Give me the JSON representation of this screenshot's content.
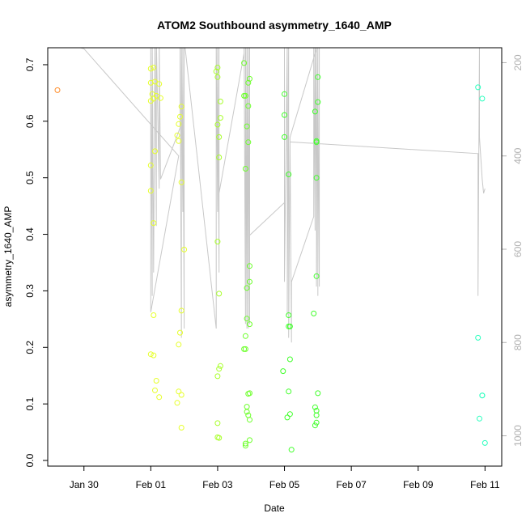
{
  "chart_data": {
    "type": "scatter",
    "title": "ATOM2 Southbound asymmetry_1640_AMP",
    "xlabel": "Date",
    "ylabel": "asymmetry_1640_AMP",
    "x_axis": {
      "type": "date",
      "range": [
        "2024-01-28T22:00",
        "2024-02-11T12:00"
      ],
      "ticks": [
        {
          "value": "2024-01-30",
          "label": "Jan 30"
        },
        {
          "value": "2024-02-01",
          "label": "Feb 01"
        },
        {
          "value": "2024-02-03",
          "label": "Feb 03"
        },
        {
          "value": "2024-02-05",
          "label": "Feb 05"
        },
        {
          "value": "2024-02-07",
          "label": "Feb 07"
        },
        {
          "value": "2024-02-09",
          "label": "Feb 09"
        },
        {
          "value": "2024-02-11",
          "label": "Feb 11"
        }
      ]
    },
    "y_axis": {
      "range": [
        -0.01,
        0.73
      ],
      "ticks": [
        0.0,
        0.1,
        0.2,
        0.3,
        0.4,
        0.5,
        0.6,
        0.7
      ],
      "tick_labels": [
        "0.0",
        "0.1",
        "0.2",
        "0.3",
        "0.4",
        "0.5",
        "0.6",
        "0.7"
      ]
    },
    "y2_axis": {
      "reversed": true,
      "range": [
        168,
        1065
      ],
      "ticks": [
        200,
        400,
        600,
        800,
        1000
      ],
      "tick_labels": [
        "200",
        "400",
        "600",
        "800",
        "1000"
      ],
      "color": "#b0b0b0"
    },
    "grid": false,
    "legend": "none",
    "point_style": "open circle",
    "series": [
      {
        "color": "#ff8c28",
        "points": [
          [
            "2024-01-29T05:00",
            0.655
          ]
        ]
      },
      {
        "color": "#e6ff2a",
        "points": [
          [
            "2024-02-01T00:00",
            0.693
          ],
          [
            "2024-02-01T02:00",
            0.695
          ],
          [
            "2024-02-01T00:00",
            0.668
          ],
          [
            "2024-02-01T03:00",
            0.67
          ],
          [
            "2024-02-01T06:00",
            0.666
          ],
          [
            "2024-02-01T01:00",
            0.648
          ],
          [
            "2024-02-01T04:00",
            0.645
          ],
          [
            "2024-02-01T07:00",
            0.641
          ],
          [
            "2024-02-01T02:00",
            0.64
          ],
          [
            "2024-02-01T00:00",
            0.636
          ],
          [
            "2024-02-01T03:00",
            0.547
          ],
          [
            "2024-02-01T00:00",
            0.522
          ],
          [
            "2024-02-01T00:00",
            0.477
          ],
          [
            "2024-02-01T02:00",
            0.42
          ],
          [
            "2024-02-01T02:00",
            0.257
          ],
          [
            "2024-02-01T00:00",
            0.188
          ],
          [
            "2024-02-01T02:00",
            0.186
          ],
          [
            "2024-02-01T04:00",
            0.141
          ],
          [
            "2024-02-01T03:00",
            0.124
          ],
          [
            "2024-02-01T06:00",
            0.112
          ],
          [
            "2024-02-01T22:00",
            0.626
          ],
          [
            "2024-02-01T21:00",
            0.608
          ],
          [
            "2024-02-01T20:00",
            0.595
          ],
          [
            "2024-02-01T19:00",
            0.575
          ],
          [
            "2024-02-01T20:00",
            0.565
          ],
          [
            "2024-02-01T22:00",
            0.492
          ],
          [
            "2024-02-02T00:00",
            0.373
          ],
          [
            "2024-02-01T22:00",
            0.265
          ],
          [
            "2024-02-01T21:00",
            0.226
          ],
          [
            "2024-02-01T20:00",
            0.205
          ],
          [
            "2024-02-01T20:00",
            0.122
          ],
          [
            "2024-02-01T22:00",
            0.116
          ],
          [
            "2024-02-01T19:00",
            0.102
          ],
          [
            "2024-02-01T22:00",
            0.058
          ]
        ]
      },
      {
        "color": "#a8ff2a",
        "points": [
          [
            "2024-02-03T00:00",
            0.695
          ],
          [
            "2024-02-02T23:00",
            0.688
          ],
          [
            "2024-02-03T00:00",
            0.678
          ],
          [
            "2024-02-03T02:00",
            0.635
          ],
          [
            "2024-02-03T02:00",
            0.606
          ],
          [
            "2024-02-03T00:00",
            0.594
          ],
          [
            "2024-02-03T01:00",
            0.572
          ],
          [
            "2024-02-03T01:00",
            0.536
          ],
          [
            "2024-02-03T00:00",
            0.387
          ],
          [
            "2024-02-03T01:00",
            0.295
          ],
          [
            "2024-02-03T02:00",
            0.167
          ],
          [
            "2024-02-03T01:00",
            0.162
          ],
          [
            "2024-02-03T00:00",
            0.149
          ],
          [
            "2024-02-03T00:00",
            0.066
          ],
          [
            "2024-02-03T00:00",
            0.041
          ],
          [
            "2024-02-03T01:00",
            0.04
          ]
        ]
      },
      {
        "color": "#6cff2a",
        "points": [
          [
            "2024-02-03T19:00",
            0.703
          ],
          [
            "2024-02-03T23:00",
            0.675
          ],
          [
            "2024-02-03T22:00",
            0.668
          ],
          [
            "2024-02-03T19:00",
            0.645
          ],
          [
            "2024-02-03T20:00",
            0.645
          ],
          [
            "2024-02-03T22:00",
            0.627
          ],
          [
            "2024-02-03T21:00",
            0.591
          ],
          [
            "2024-02-03T22:00",
            0.563
          ],
          [
            "2024-02-03T20:00",
            0.516
          ],
          [
            "2024-02-03T23:00",
            0.344
          ],
          [
            "2024-02-03T23:00",
            0.316
          ],
          [
            "2024-02-03T21:00",
            0.305
          ],
          [
            "2024-02-03T21:00",
            0.251
          ],
          [
            "2024-02-03T23:00",
            0.241
          ],
          [
            "2024-02-03T20:00",
            0.22
          ],
          [
            "2024-02-03T19:00",
            0.197
          ],
          [
            "2024-02-03T20:00",
            0.197
          ],
          [
            "2024-02-03T23:00",
            0.119
          ],
          [
            "2024-02-03T22:00",
            0.118
          ],
          [
            "2024-02-03T21:00",
            0.095
          ],
          [
            "2024-02-03T21:00",
            0.086
          ],
          [
            "2024-02-03T22:00",
            0.08
          ],
          [
            "2024-02-03T23:00",
            0.072
          ],
          [
            "2024-02-03T23:00",
            0.036
          ],
          [
            "2024-02-03T20:00",
            0.03
          ],
          [
            "2024-02-03T20:00",
            0.026
          ]
        ]
      },
      {
        "color": "#40ff2a",
        "points": [
          [
            "2024-02-05T00:00",
            0.648
          ],
          [
            "2024-02-05T00:00",
            0.611
          ],
          [
            "2024-02-05T00:00",
            0.572
          ],
          [
            "2024-02-05T03:00",
            0.506
          ],
          [
            "2024-02-05T03:00",
            0.257
          ],
          [
            "2024-02-05T03:00",
            0.237
          ],
          [
            "2024-02-05T04:00",
            0.237
          ],
          [
            "2024-02-05T04:00",
            0.179
          ],
          [
            "2024-02-04T23:00",
            0.158
          ],
          [
            "2024-02-05T03:00",
            0.122
          ],
          [
            "2024-02-05T04:00",
            0.082
          ],
          [
            "2024-02-05T02:00",
            0.076
          ],
          [
            "2024-02-05T05:00",
            0.019
          ],
          [
            "2024-02-06T00:00",
            0.678
          ],
          [
            "2024-02-06T00:00",
            0.634
          ],
          [
            "2024-02-05T22:00",
            0.617
          ],
          [
            "2024-02-05T23:00",
            0.565
          ],
          [
            "2024-02-05T23:00",
            0.563
          ],
          [
            "2024-02-05T23:00",
            0.5
          ],
          [
            "2024-02-05T23:00",
            0.326
          ],
          [
            "2024-02-05T21:00",
            0.26
          ],
          [
            "2024-02-06T00:00",
            0.119
          ],
          [
            "2024-02-05T22:00",
            0.094
          ],
          [
            "2024-02-05T23:00",
            0.088
          ],
          [
            "2024-02-05T23:00",
            0.08
          ],
          [
            "2024-02-05T23:00",
            0.067
          ],
          [
            "2024-02-05T22:00",
            0.062
          ]
        ]
      },
      {
        "color": "#2affbe",
        "points": [
          [
            "2024-02-10T19:00",
            0.66
          ],
          [
            "2024-02-10T22:00",
            0.64
          ],
          [
            "2024-02-10T19:00",
            0.217
          ],
          [
            "2024-02-10T22:00",
            0.115
          ],
          [
            "2024-02-10T22:00",
            0.115
          ],
          [
            "2024-02-10T20:00",
            0.074
          ],
          [
            "2024-02-11T00:00",
            0.031
          ]
        ]
      }
    ],
    "overlay_line": {
      "axis": "right",
      "color": "#c8c8c8",
      "points": [
        [
          "2024-01-28T22:00",
          150
        ],
        [
          "2024-01-30T00:00",
          170
        ],
        [
          "2024-02-01T20:00",
          400
        ],
        [
          "2024-02-01T00:00",
          735
        ],
        [
          "2024-02-01T00:00",
          150
        ],
        [
          "2024-02-01T01:00",
          700
        ],
        [
          "2024-02-01T01:00",
          150
        ],
        [
          "2024-02-01T02:00",
          650
        ],
        [
          "2024-02-01T03:00",
          150
        ],
        [
          "2024-02-01T04:00",
          550
        ],
        [
          "2024-02-01T04:00",
          150
        ],
        [
          "2024-02-01T06:00",
          470
        ],
        [
          "2024-02-01T06:00",
          150
        ],
        [
          "2024-02-01T07:00",
          450
        ],
        [
          "2024-02-01T21:00",
          340
        ],
        [
          "2024-02-01T21:00",
          150
        ],
        [
          "2024-02-01T22:00",
          790
        ],
        [
          "2024-02-01T22:00",
          150
        ],
        [
          "2024-02-01T23:00",
          520
        ],
        [
          "2024-02-01T23:00",
          150
        ],
        [
          "2024-02-02T00:00",
          770
        ],
        [
          "2024-02-02T00:00",
          150
        ],
        [
          "2024-02-02T00:00",
          740
        ],
        [
          "2024-02-02T00:00",
          150
        ],
        [
          "2024-02-02T23:00",
          770
        ],
        [
          "2024-02-02T23:00",
          150
        ],
        [
          "2024-02-03T00:00",
          520
        ],
        [
          "2024-02-03T00:00",
          150
        ],
        [
          "2024-02-03T01:00",
          650
        ],
        [
          "2024-02-03T01:00",
          150
        ],
        [
          "2024-02-03T01:00",
          620
        ],
        [
          "2024-02-03T01:00",
          480
        ],
        [
          "2024-02-03T19:00",
          180
        ],
        [
          "2024-02-03T19:00",
          150
        ],
        [
          "2024-02-03T20:00",
          760
        ],
        [
          "2024-02-03T20:00",
          150
        ],
        [
          "2024-02-03T21:00",
          770
        ],
        [
          "2024-02-03T21:00",
          150
        ],
        [
          "2024-02-03T22:00",
          770
        ],
        [
          "2024-02-03T22:00",
          150
        ],
        [
          "2024-02-03T22:00",
          720
        ],
        [
          "2024-02-03T23:00",
          150
        ],
        [
          "2024-02-03T23:00",
          760
        ],
        [
          "2024-02-03T23:00",
          570
        ],
        [
          "2024-02-05T00:00",
          500
        ],
        [
          "2024-02-05T00:00",
          150
        ],
        [
          "2024-02-05T00:00",
          670
        ],
        [
          "2024-02-05T02:00",
          150
        ],
        [
          "2024-02-05T02:00",
          740
        ],
        [
          "2024-02-05T03:00",
          150
        ],
        [
          "2024-02-05T03:00",
          790
        ],
        [
          "2024-02-05T04:00",
          370
        ],
        [
          "2024-02-05T05:00",
          800
        ],
        [
          "2024-02-05T05:00",
          670
        ],
        [
          "2024-02-05T21:00",
          530
        ],
        [
          "2024-02-05T21:00",
          150
        ],
        [
          "2024-02-05T22:00",
          560
        ],
        [
          "2024-02-05T22:00",
          150
        ],
        [
          "2024-02-05T23:00",
          520
        ],
        [
          "2024-02-05T23:00",
          150
        ],
        [
          "2024-02-05T23:00",
          680
        ],
        [
          "2024-02-06T00:00",
          150
        ],
        [
          "2024-02-06T00:00",
          630
        ],
        [
          "2024-02-06T00:00",
          150
        ],
        [
          "2024-02-06T00:00",
          700
        ],
        [
          "2024-02-06T00:00",
          230
        ],
        [
          "2024-02-06T01:00",
          680
        ],
        [
          "2024-02-06T01:00",
          150
        ],
        [
          "2024-02-05T04:00",
          360
        ],
        [
          "2024-02-05T04:00",
          370
        ],
        [
          "2024-02-10T19:00",
          395
        ],
        [
          "2024-02-10T19:00",
          700
        ],
        [
          "2024-02-10T20:00",
          150
        ],
        [
          "2024-02-10T20:00",
          360
        ],
        [
          "2024-02-10T22:00",
          450
        ],
        [
          "2024-02-10T23:00",
          480
        ],
        [
          "2024-02-11T00:00",
          470
        ]
      ]
    }
  }
}
